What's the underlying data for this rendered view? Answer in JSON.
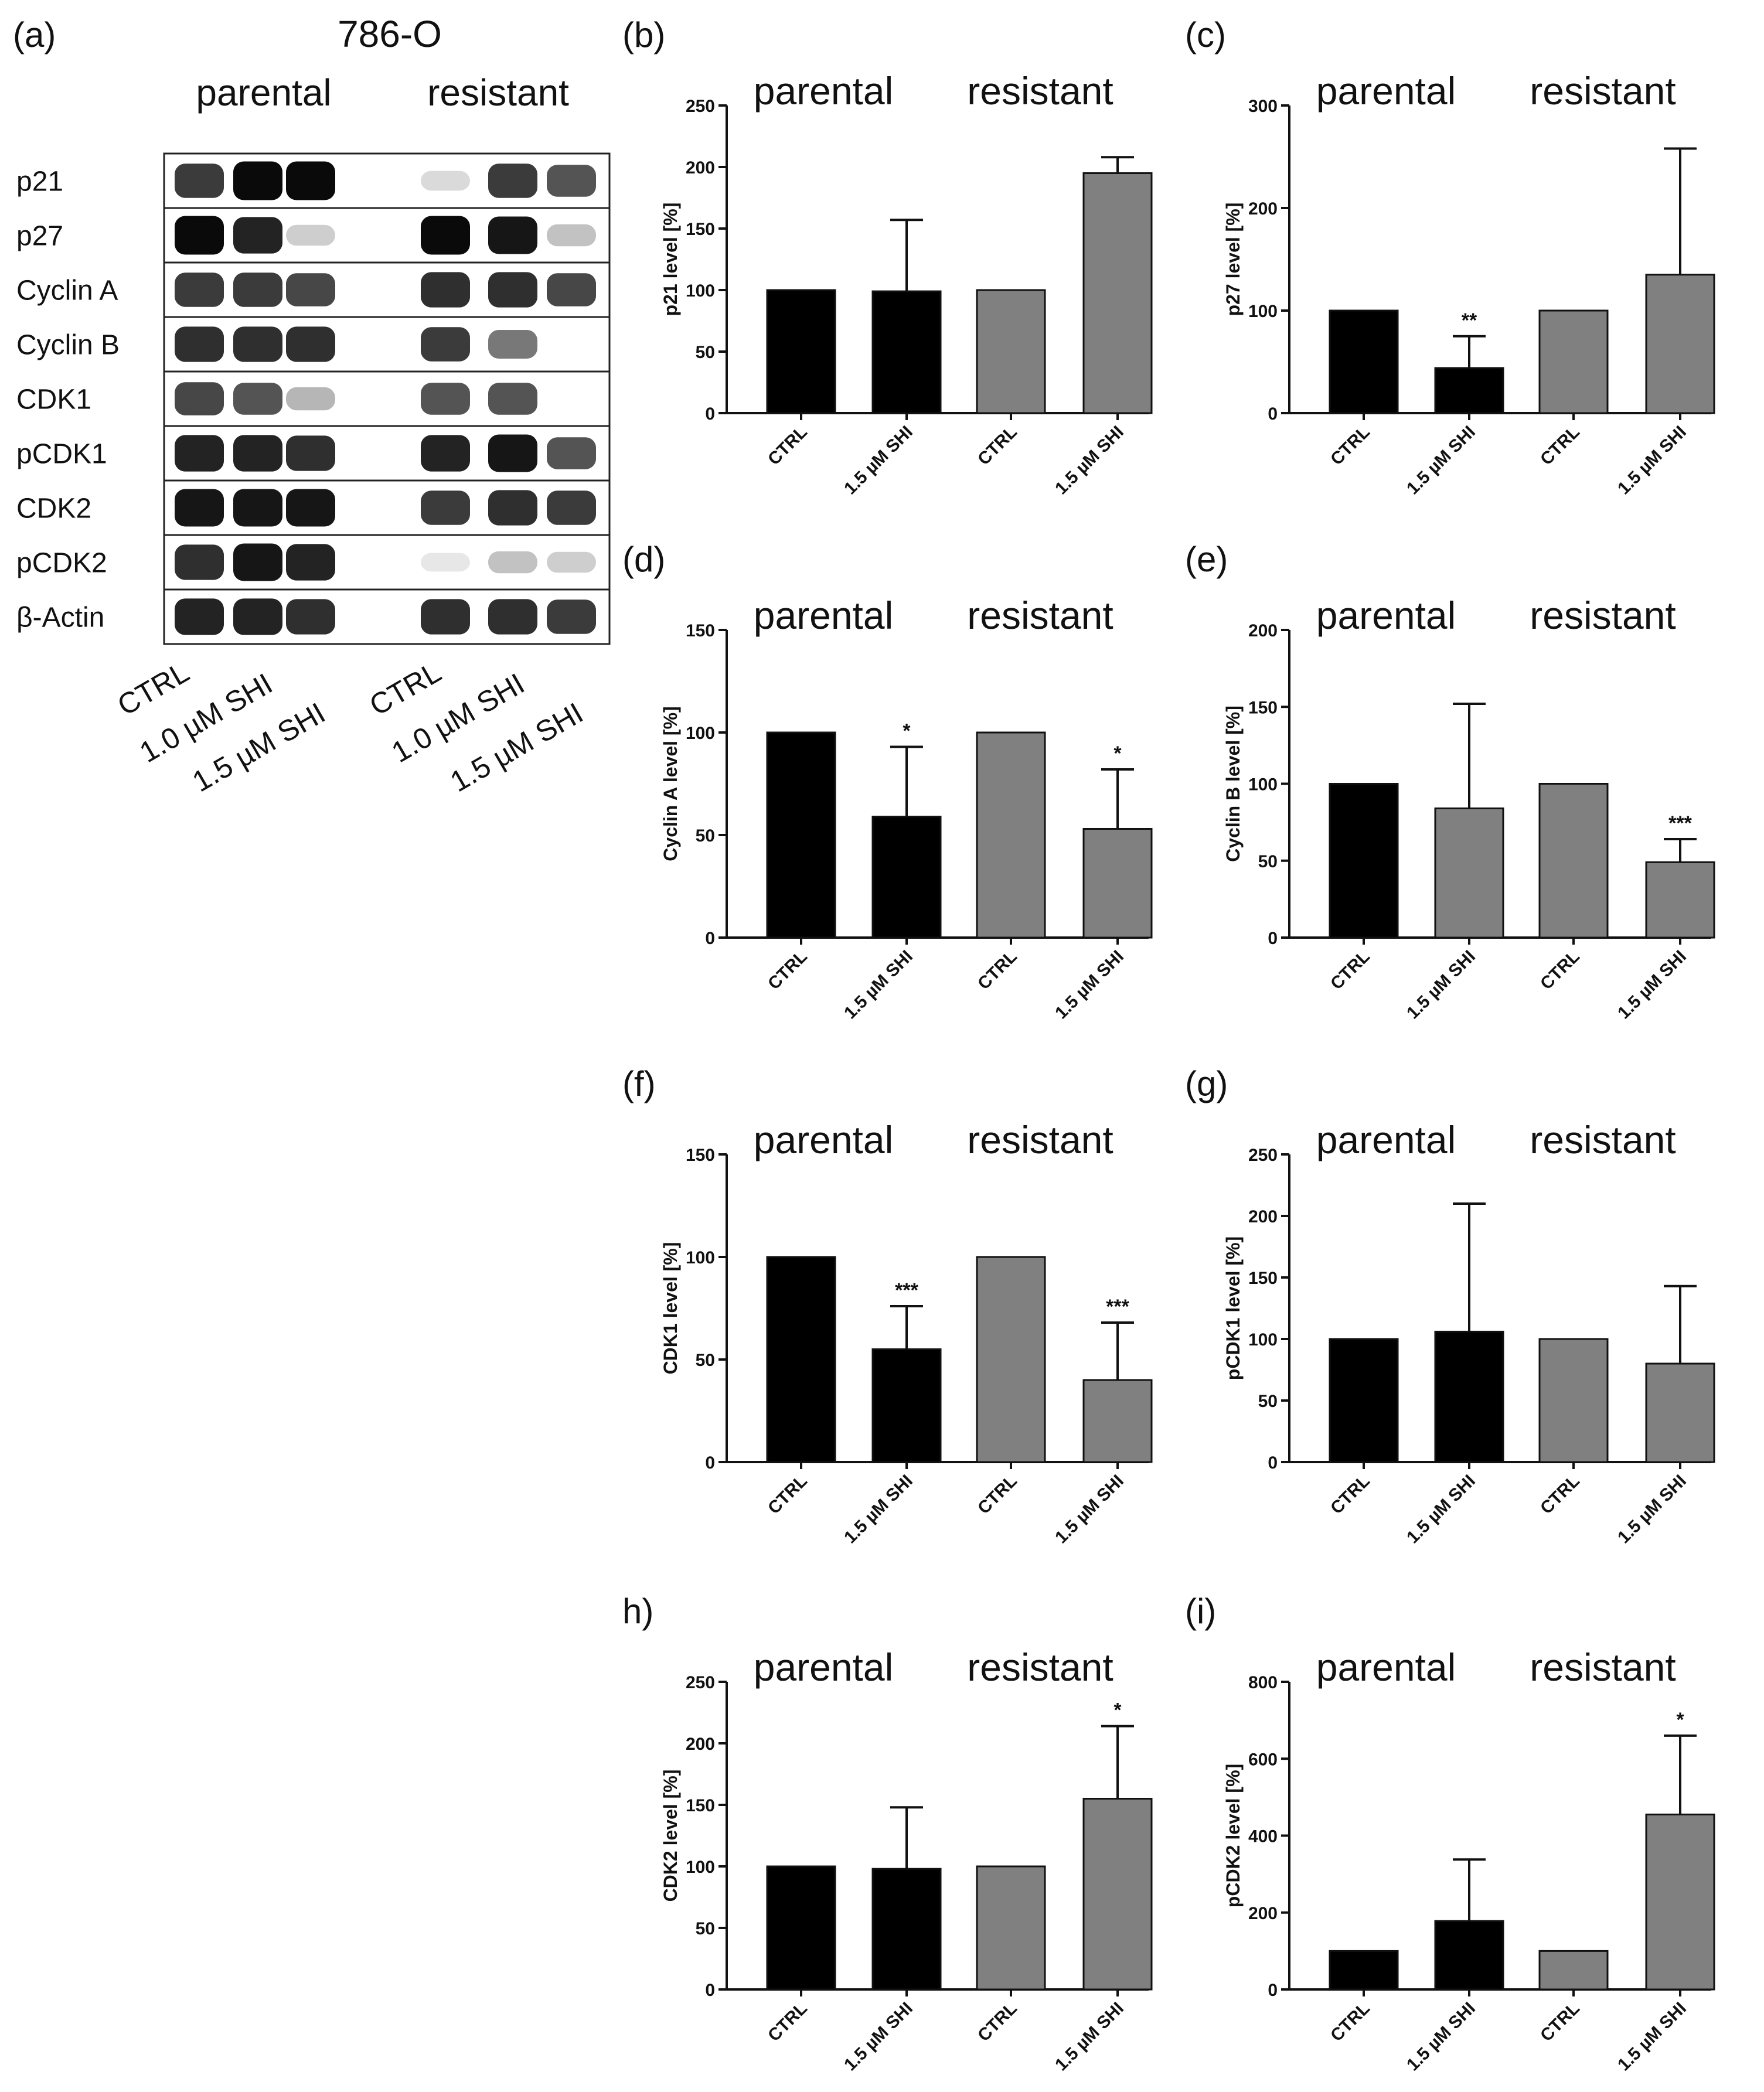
{
  "blot": {
    "panel_label": "(a)",
    "cell_line": "786-O",
    "group_labels": [
      "parental",
      "resistant"
    ],
    "rows": [
      "p21",
      "p27",
      "Cyclin A",
      "Cyclin B",
      "CDK1",
      "pCDK1",
      "CDK2",
      "pCDK2",
      "β-Actin"
    ],
    "lanes": [
      "CTRL",
      "1.0 µM SHI",
      "1.5 µM SHI",
      "CTRL",
      "1.0 µM SHI",
      "1.5 µM SHI"
    ]
  },
  "chart_data": [
    {
      "type": "bar",
      "panel": "(b)",
      "groups": [
        "parental",
        "resistant"
      ],
      "categories": [
        "CTRL",
        "1.5 µM SHI",
        "CTRL",
        "1.5 µM SHI"
      ],
      "values": [
        100,
        99,
        100,
        195
      ],
      "errors": [
        0,
        58,
        0,
        13
      ],
      "significance": [
        "",
        "",
        "",
        ""
      ],
      "bar_colors": [
        "#000000",
        "#000000",
        "#808080",
        "#808080"
      ],
      "ylabel": "p21 level [%]",
      "ylim": [
        0,
        250
      ],
      "yticks": [
        0,
        50,
        100,
        150,
        200,
        250
      ]
    },
    {
      "type": "bar",
      "panel": "(c)",
      "groups": [
        "parental",
        "resistant"
      ],
      "categories": [
        "CTRL",
        "1.5 µM SHI",
        "CTRL",
        "1.5 µM SHI"
      ],
      "values": [
        100,
        44,
        100,
        135
      ],
      "errors": [
        0,
        31,
        0,
        123
      ],
      "significance": [
        "",
        "**",
        "",
        ""
      ],
      "bar_colors": [
        "#000000",
        "#000000",
        "#808080",
        "#808080"
      ],
      "ylabel": "p27 level [%]",
      "ylim": [
        0,
        300
      ],
      "yticks": [
        0,
        100,
        200,
        300
      ]
    },
    {
      "type": "bar",
      "panel": "(d)",
      "groups": [
        "parental",
        "resistant"
      ],
      "categories": [
        "CTRL",
        "1.5 µM SHI",
        "CTRL",
        "1.5 µM SHI"
      ],
      "values": [
        100,
        59,
        100,
        53
      ],
      "errors": [
        0,
        34,
        0,
        29
      ],
      "significance": [
        "",
        "*",
        "",
        "*"
      ],
      "bar_colors": [
        "#000000",
        "#000000",
        "#808080",
        "#808080"
      ],
      "ylabel": "Cyclin A level [%]",
      "ylim": [
        0,
        150
      ],
      "yticks": [
        0,
        50,
        100,
        150
      ]
    },
    {
      "type": "bar",
      "panel": "(e)",
      "groups": [
        "parental",
        "resistant"
      ],
      "categories": [
        "CTRL",
        "1.5 µM SHI",
        "CTRL",
        "1.5 µM SHI"
      ],
      "values": [
        100,
        84,
        100,
        49
      ],
      "errors": [
        0,
        68,
        0,
        15
      ],
      "significance": [
        "",
        "",
        "",
        "***"
      ],
      "bar_colors": [
        "#000000",
        "#808080",
        "#808080",
        "#808080"
      ],
      "ylabel": "Cyclin B level [%]",
      "ylim": [
        0,
        200
      ],
      "yticks": [
        0,
        50,
        100,
        150,
        200
      ]
    },
    {
      "type": "bar",
      "panel": "(f)",
      "groups": [
        "parental",
        "resistant"
      ],
      "categories": [
        "CTRL",
        "1.5 µM SHI",
        "CTRL",
        "1.5 µM SHI"
      ],
      "values": [
        100,
        55,
        100,
        40
      ],
      "errors": [
        0,
        21,
        0,
        28
      ],
      "significance": [
        "",
        "***",
        "",
        "***"
      ],
      "bar_colors": [
        "#000000",
        "#000000",
        "#808080",
        "#808080"
      ],
      "ylabel": "CDK1 level [%]",
      "ylim": [
        0,
        150
      ],
      "yticks": [
        0,
        50,
        100,
        150
      ]
    },
    {
      "type": "bar",
      "panel": "(g)",
      "groups": [
        "parental",
        "resistant"
      ],
      "categories": [
        "CTRL",
        "1.5 µM SHI",
        "CTRL",
        "1.5 µM SHI"
      ],
      "values": [
        100,
        106,
        100,
        80
      ],
      "errors": [
        0,
        104,
        0,
        63
      ],
      "significance": [
        "",
        "",
        "",
        ""
      ],
      "bar_colors": [
        "#000000",
        "#000000",
        "#808080",
        "#808080"
      ],
      "ylabel": "pCDK1 level [%]",
      "ylim": [
        0,
        250
      ],
      "yticks": [
        0,
        50,
        100,
        150,
        200,
        250
      ]
    },
    {
      "type": "bar",
      "panel": "h)",
      "groups": [
        "parental",
        "resistant"
      ],
      "categories": [
        "CTRL",
        "1.5 µM SHI",
        "CTRL",
        "1.5 µM SHI"
      ],
      "values": [
        100,
        98,
        100,
        155
      ],
      "errors": [
        0,
        50,
        0,
        59
      ],
      "significance": [
        "",
        "",
        "",
        "*"
      ],
      "bar_colors": [
        "#000000",
        "#000000",
        "#808080",
        "#808080"
      ],
      "ylabel": "CDK2 level [%]",
      "ylim": [
        0,
        250
      ],
      "yticks": [
        0,
        50,
        100,
        150,
        200,
        250
      ]
    },
    {
      "type": "bar",
      "panel": "(i)",
      "groups": [
        "parental",
        "resistant"
      ],
      "categories": [
        "CTRL",
        "1.5 µM SHI",
        "CTRL",
        "1.5 µM SHI"
      ],
      "values": [
        100,
        178,
        100,
        455
      ],
      "errors": [
        0,
        160,
        0,
        205
      ],
      "significance": [
        "",
        "",
        "",
        "*"
      ],
      "bar_colors": [
        "#000000",
        "#000000",
        "#808080",
        "#808080"
      ],
      "ylabel": "pCDK2 level [%]",
      "ylim": [
        0,
        800
      ],
      "yticks": [
        0,
        200,
        400,
        600,
        800
      ]
    }
  ]
}
